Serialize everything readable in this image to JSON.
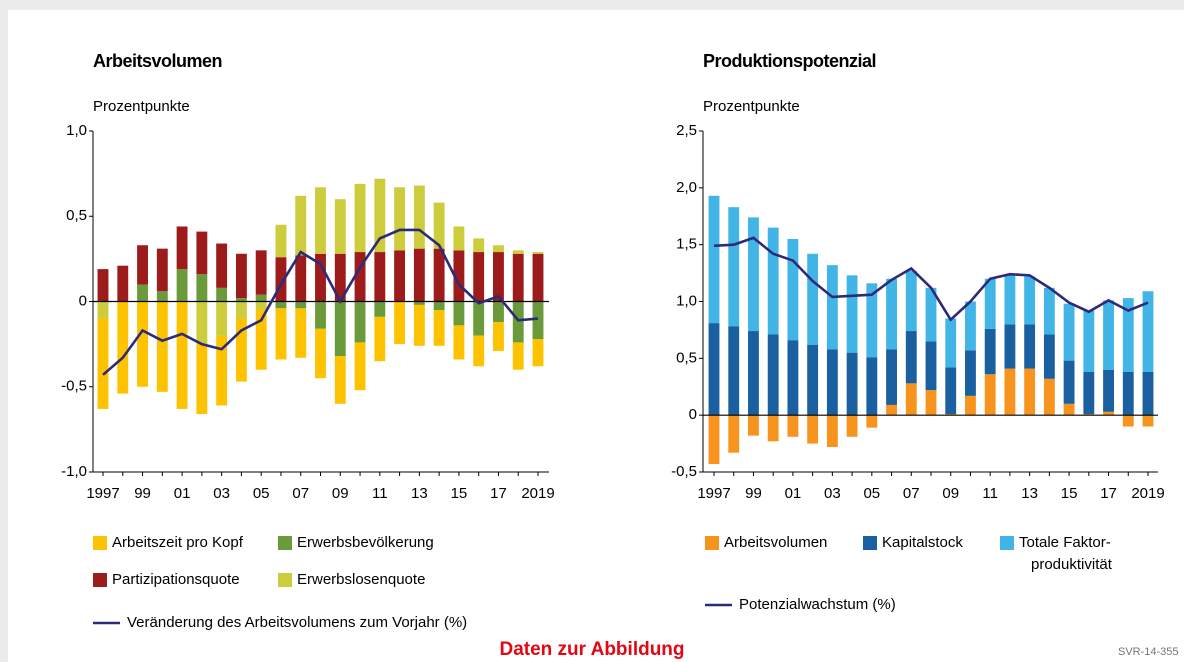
{
  "chart_data": [
    {
      "type": "bar",
      "stacked": true,
      "title": "Arbeitsvolumen",
      "y_label": "Prozentpunkte",
      "categories": [
        "1997",
        null,
        "99",
        null,
        "01",
        null,
        "03",
        null,
        "05",
        null,
        "07",
        null,
        "09",
        null,
        "11",
        null,
        "13",
        null,
        "15",
        null,
        "17",
        null,
        "2019"
      ],
      "ylim": [
        -1,
        1
      ],
      "yticks": [
        {
          "value": 1,
          "label": "1,0"
        },
        {
          "value": 0.5,
          "label": "0,5"
        },
        0,
        {
          "value": -0.5,
          "label": "-0,5"
        },
        {
          "value": -1,
          "label": "-1,0"
        }
      ],
      "series": [
        {
          "name": "Arbeitszeit pro Kopf",
          "color": "#fdc300",
          "values": [
            -0.53,
            -0.54,
            -0.5,
            -0.53,
            -0.63,
            -0.41,
            -0.41,
            -0.37,
            -0.35,
            -0.3,
            -0.29,
            -0.29,
            -0.28,
            -0.28,
            -0.26,
            -0.25,
            -0.24,
            -0.21,
            -0.2,
            -0.18,
            -0.17,
            -0.16,
            -0.16
          ]
        },
        {
          "name": "Erwerbsbevölkerung",
          "color": "#6a9a3a",
          "values": [
            0,
            0,
            0.1,
            0.06,
            0.19,
            0.16,
            0.08,
            0.02,
            0.04,
            -0.04,
            -0.04,
            -0.16,
            -0.32,
            -0.24,
            -0.09,
            0,
            -0.02,
            -0.05,
            -0.14,
            -0.2,
            -0.12,
            -0.24,
            -0.22
          ]
        },
        {
          "name": "Partizipationsquote",
          "color": "#9e1b1b",
          "values": [
            0.19,
            0.21,
            0.23,
            0.25,
            0.25,
            0.25,
            0.26,
            0.26,
            0.26,
            0.26,
            0.27,
            0.28,
            0.28,
            0.29,
            0.29,
            0.3,
            0.31,
            0.31,
            0.3,
            0.29,
            0.29,
            0.28,
            0.28
          ]
        },
        {
          "name": "Erwerbslosenquote",
          "color": "#cccc3c",
          "values": [
            -0.1,
            0,
            0,
            0,
            0,
            -0.25,
            -0.2,
            -0.1,
            -0.05,
            0.19,
            0.35,
            0.39,
            0.32,
            0.4,
            0.43,
            0.37,
            0.37,
            0.27,
            0.14,
            0.08,
            0.04,
            0.02,
            0.01
          ]
        },
        {
          "name": "Veränderung des Arbeitsvolumens zum Vorjahr (%)",
          "type": "line",
          "color": "#2e2a7a",
          "values": [
            -0.43,
            -0.33,
            -0.17,
            -0.23,
            -0.19,
            -0.25,
            -0.28,
            -0.17,
            -0.11,
            0.1,
            0.29,
            0.22,
            0,
            0.2,
            0.37,
            0.42,
            0.42,
            0.33,
            0.1,
            -0.01,
            0.03,
            -0.11,
            -0.1
          ]
        }
      ]
    },
    {
      "type": "bar",
      "stacked": true,
      "title": "Produktionspotenzial",
      "y_label": "Prozentpunkte",
      "categories": [
        "1997",
        null,
        "99",
        null,
        "01",
        null,
        "03",
        null,
        "05",
        null,
        "07",
        null,
        "09",
        null,
        "11",
        null,
        "13",
        null,
        "15",
        null,
        "17",
        null,
        "2019"
      ],
      "ylim": [
        -0.5,
        2.5
      ],
      "yticks": [
        {
          "value": 2.5,
          "label": "2,5"
        },
        {
          "value": 2,
          "label": "2,0"
        },
        {
          "value": 1.5,
          "label": "1,5"
        },
        {
          "value": 1,
          "label": "1,0"
        },
        {
          "value": 0.5,
          "label": "0,5"
        },
        0,
        {
          "value": -0.5,
          "label": "-0,5"
        }
      ],
      "series": [
        {
          "name": "Arbeitsvolumen",
          "color": "#f7941d",
          "values": [
            -0.43,
            -0.33,
            -0.18,
            -0.23,
            -0.19,
            -0.25,
            -0.28,
            -0.19,
            -0.11,
            0.09,
            0.28,
            0.22,
            0.01,
            0.17,
            0.36,
            0.41,
            0.41,
            0.32,
            0.1,
            0.01,
            0.03,
            -0.1,
            -0.1
          ]
        },
        {
          "name": "Kapitalstock",
          "color": "#1a5fa0",
          "values": [
            0.81,
            0.78,
            0.74,
            0.71,
            0.66,
            0.62,
            0.58,
            0.55,
            0.51,
            0.49,
            0.46,
            0.43,
            0.41,
            0.4,
            0.4,
            0.39,
            0.39,
            0.39,
            0.38,
            0.37,
            0.37,
            0.38,
            0.38
          ]
        },
        {
          "name": "Totale Faktor-produktivität",
          "color": "#41b6e6",
          "values": [
            1.12,
            1.05,
            1.0,
            0.94,
            0.89,
            0.8,
            0.74,
            0.68,
            0.65,
            0.62,
            0.53,
            0.47,
            0.43,
            0.43,
            0.44,
            0.43,
            0.42,
            0.41,
            0.5,
            0.54,
            0.61,
            0.65,
            0.71
          ]
        },
        {
          "name": "Potenzialwachstum (%)",
          "type": "line",
          "color": "#2e2a7a",
          "values": [
            1.49,
            1.5,
            1.56,
            1.42,
            1.36,
            1.18,
            1.04,
            1.05,
            1.06,
            1.19,
            1.29,
            1.12,
            0.84,
            1.0,
            1.2,
            1.24,
            1.23,
            1.12,
            0.99,
            0.91,
            1.01,
            0.92,
            0.99
          ]
        }
      ]
    }
  ],
  "link": "Daten zur Abbildung",
  "code": "SVR-14-355"
}
